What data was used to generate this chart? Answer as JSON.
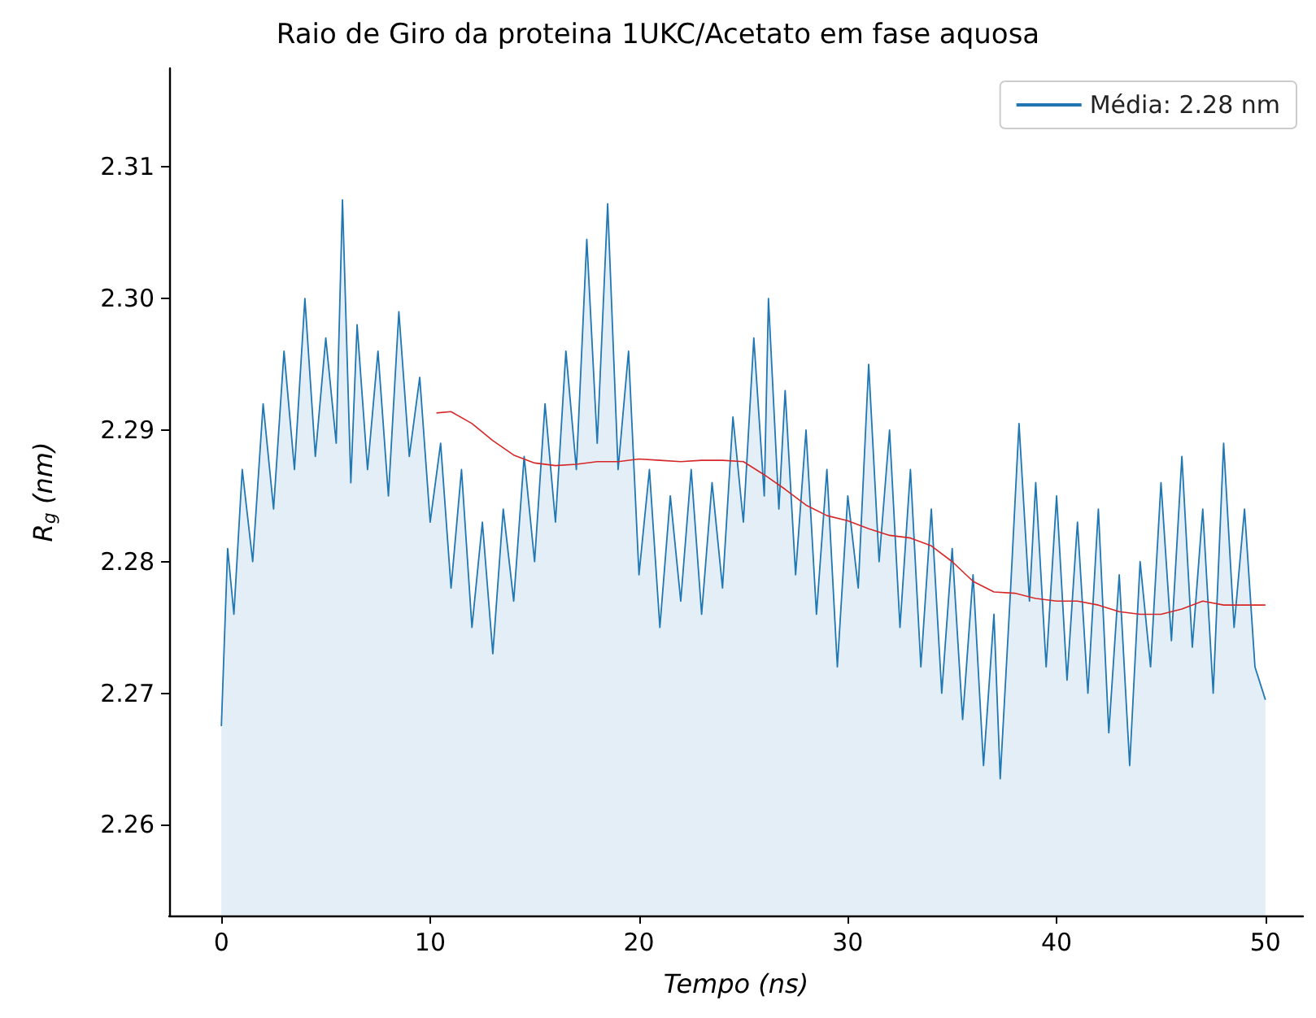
{
  "chart_data": {
    "type": "area",
    "title": "Raio de Giro da proteina 1UKC/Acetato em fase aquosa",
    "xlabel": "Tempo (ns)",
    "ylabel": "R$_{g}$ (nm)",
    "xlim": [
      -2.5,
      51.8
    ],
    "xticks": [
      0,
      10,
      20,
      30,
      40,
      50
    ],
    "ylim": [
      2.2531,
      2.3175
    ],
    "yticks": [
      2.26,
      2.27,
      2.28,
      2.29,
      {
        "value": 2.3,
        "label": "2.30"
      },
      2.31
    ],
    "grid": false,
    "legend": "top right",
    "marker": "none",
    "line_style": "solid",
    "series": [
      {
        "name": "Média: 2.28 nm",
        "type": "area",
        "color": "#1f77b4",
        "x": [
          0,
          0.3,
          0.6,
          1,
          1.5,
          2,
          2.5,
          3,
          3.5,
          4,
          4.5,
          5,
          5.5,
          5.8,
          6.2,
          6.5,
          7,
          7.5,
          8,
          8.5,
          9,
          9.5,
          10,
          10.5,
          11,
          11.5,
          12,
          12.5,
          13,
          13.5,
          14,
          14.5,
          15,
          15.5,
          16,
          16.5,
          17,
          17.5,
          18,
          18.5,
          19,
          19.5,
          20,
          20.5,
          21,
          21.5,
          22,
          22.5,
          23,
          23.5,
          24,
          24.5,
          25,
          25.5,
          26,
          26.2,
          26.7,
          27,
          27.5,
          28,
          28.5,
          29,
          29.5,
          30,
          30.5,
          31,
          31.5,
          32,
          32.5,
          33,
          33.5,
          34,
          34.5,
          35,
          35.5,
          36,
          36.5,
          37,
          37.3,
          37.8,
          38.2,
          38.7,
          39,
          39.5,
          40,
          40.5,
          41,
          41.5,
          42,
          42.5,
          43,
          43.5,
          44,
          44.5,
          45,
          45.5,
          46,
          46.5,
          47,
          47.5,
          48,
          48.5,
          49,
          49.5,
          50
        ],
        "values": [
          2.2675,
          2.281,
          2.276,
          2.287,
          2.28,
          2.292,
          2.284,
          2.296,
          2.287,
          2.3,
          2.288,
          2.297,
          2.289,
          2.3075,
          2.286,
          2.298,
          2.287,
          2.296,
          2.285,
          2.299,
          2.288,
          2.294,
          2.283,
          2.289,
          2.278,
          2.287,
          2.275,
          2.283,
          2.273,
          2.284,
          2.277,
          2.288,
          2.28,
          2.292,
          2.283,
          2.296,
          2.287,
          2.3045,
          2.289,
          2.3072,
          2.287,
          2.296,
          2.279,
          2.287,
          2.275,
          2.285,
          2.277,
          2.287,
          2.276,
          2.286,
          2.278,
          2.291,
          2.283,
          2.297,
          2.285,
          2.3,
          2.284,
          2.293,
          2.279,
          2.29,
          2.276,
          2.287,
          2.272,
          2.285,
          2.278,
          2.295,
          2.28,
          2.29,
          2.275,
          2.287,
          2.272,
          2.284,
          2.27,
          2.281,
          2.268,
          2.279,
          2.2645,
          2.276,
          2.2635,
          2.278,
          2.2905,
          2.277,
          2.286,
          2.272,
          2.285,
          2.271,
          2.283,
          2.27,
          2.284,
          2.267,
          2.279,
          2.2645,
          2.28,
          2.272,
          2.286,
          2.274,
          2.288,
          2.2735,
          2.284,
          2.27,
          2.289,
          2.275,
          2.284,
          2.272,
          2.2695
        ]
      },
      {
        "type": "line",
        "color": "#d62728",
        "x": [
          10.3,
          11,
          12,
          13,
          14,
          15,
          16,
          17,
          18,
          19,
          20,
          21,
          22,
          23,
          24,
          25,
          26,
          27,
          28,
          29,
          30,
          31,
          32,
          33,
          34,
          35,
          36,
          37,
          38,
          39,
          40,
          41,
          42,
          43,
          44,
          45,
          46,
          47,
          48,
          49,
          50
        ],
        "values": [
          2.2913,
          2.2914,
          2.2905,
          2.2892,
          2.2881,
          2.2875,
          2.2873,
          2.2874,
          2.2876,
          2.2876,
          2.2878,
          2.2877,
          2.2876,
          2.2877,
          2.2877,
          2.2876,
          2.2866,
          2.2855,
          2.2843,
          2.2835,
          2.2831,
          2.2825,
          2.282,
          2.2818,
          2.2812,
          2.28,
          2.2785,
          2.2777,
          2.2776,
          2.2772,
          2.277,
          2.277,
          2.2767,
          2.2762,
          2.276,
          2.276,
          2.2764,
          2.277,
          2.2767,
          2.2767,
          2.2767
        ]
      }
    ]
  }
}
